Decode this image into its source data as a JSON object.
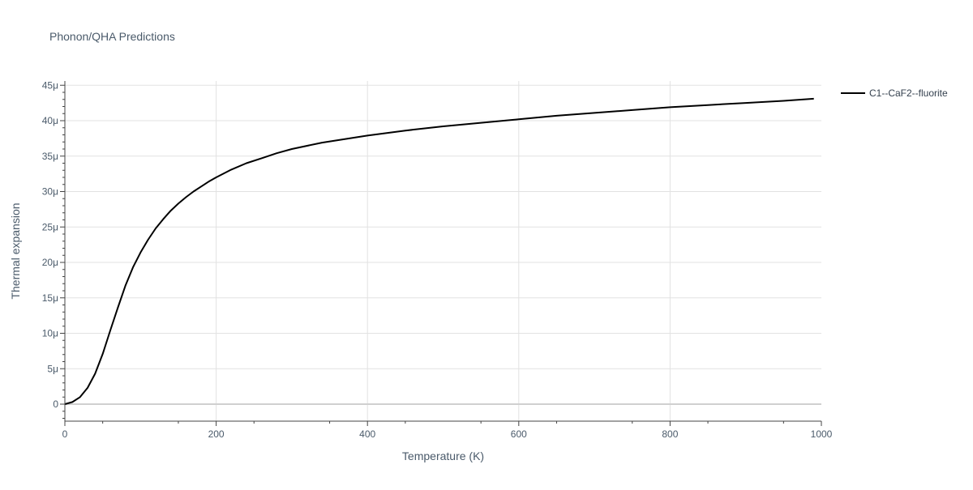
{
  "chart_data": {
    "type": "line",
    "title": "Phonon/QHA Predictions",
    "xlabel": "Temperature (K)",
    "ylabel": "Thermal expansion",
    "xlim": [
      0,
      1000
    ],
    "ylim": [
      -2.4e-06,
      4.56e-05
    ],
    "grid": true,
    "legend_position": "top-right, outside plot",
    "x_ticks": [
      0,
      200,
      400,
      600,
      800,
      1000
    ],
    "x_tick_labels": [
      "0",
      "200",
      "400",
      "600",
      "800",
      "1000"
    ],
    "y_ticks": [
      0,
      5e-06,
      1e-05,
      1.5e-05,
      2e-05,
      2.5e-05,
      3e-05,
      3.5e-05,
      4e-05,
      4.5e-05
    ],
    "y_tick_labels": [
      "0",
      "5μ",
      "10μ",
      "15μ",
      "20μ",
      "25μ",
      "30μ",
      "35μ",
      "40μ",
      "45μ"
    ],
    "series": [
      {
        "name": "C1--CaF2--fluorite",
        "color": "#000000",
        "x": [
          0,
          10,
          20,
          30,
          40,
          50,
          60,
          70,
          80,
          90,
          100,
          110,
          120,
          130,
          140,
          150,
          160,
          170,
          180,
          190,
          200,
          220,
          240,
          260,
          280,
          300,
          340,
          400,
          450,
          500,
          550,
          600,
          650,
          700,
          750,
          800,
          850,
          900,
          950,
          990
        ],
        "y": [
          0,
          3e-07,
          1e-06,
          2.3e-06,
          4.3e-06,
          7.1e-06,
          1.04e-05,
          1.36e-05,
          1.67e-05,
          1.93e-05,
          2.14e-05,
          2.32e-05,
          2.48e-05,
          2.61e-05,
          2.73e-05,
          2.83e-05,
          2.92e-05,
          3e-05,
          3.07e-05,
          3.14e-05,
          3.2e-05,
          3.31e-05,
          3.4e-05,
          3.47e-05,
          3.54e-05,
          3.6e-05,
          3.69e-05,
          3.79e-05,
          3.86e-05,
          3.92e-05,
          3.97e-05,
          4.02e-05,
          4.07e-05,
          4.11e-05,
          4.15e-05,
          4.19e-05,
          4.22e-05,
          4.25e-05,
          4.28e-05,
          4.31e-05
        ]
      }
    ]
  }
}
